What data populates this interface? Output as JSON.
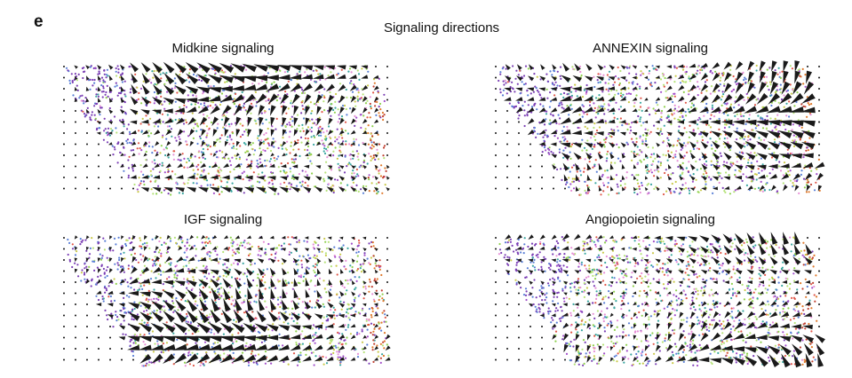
{
  "panel_label": "e",
  "title": "Signaling directions",
  "panels": [
    {
      "title": "Midkine signaling"
    },
    {
      "title": "ANNEXIN signaling"
    },
    {
      "title": "IGF signaling"
    },
    {
      "title": "Angiopoietin signaling"
    }
  ]
}
